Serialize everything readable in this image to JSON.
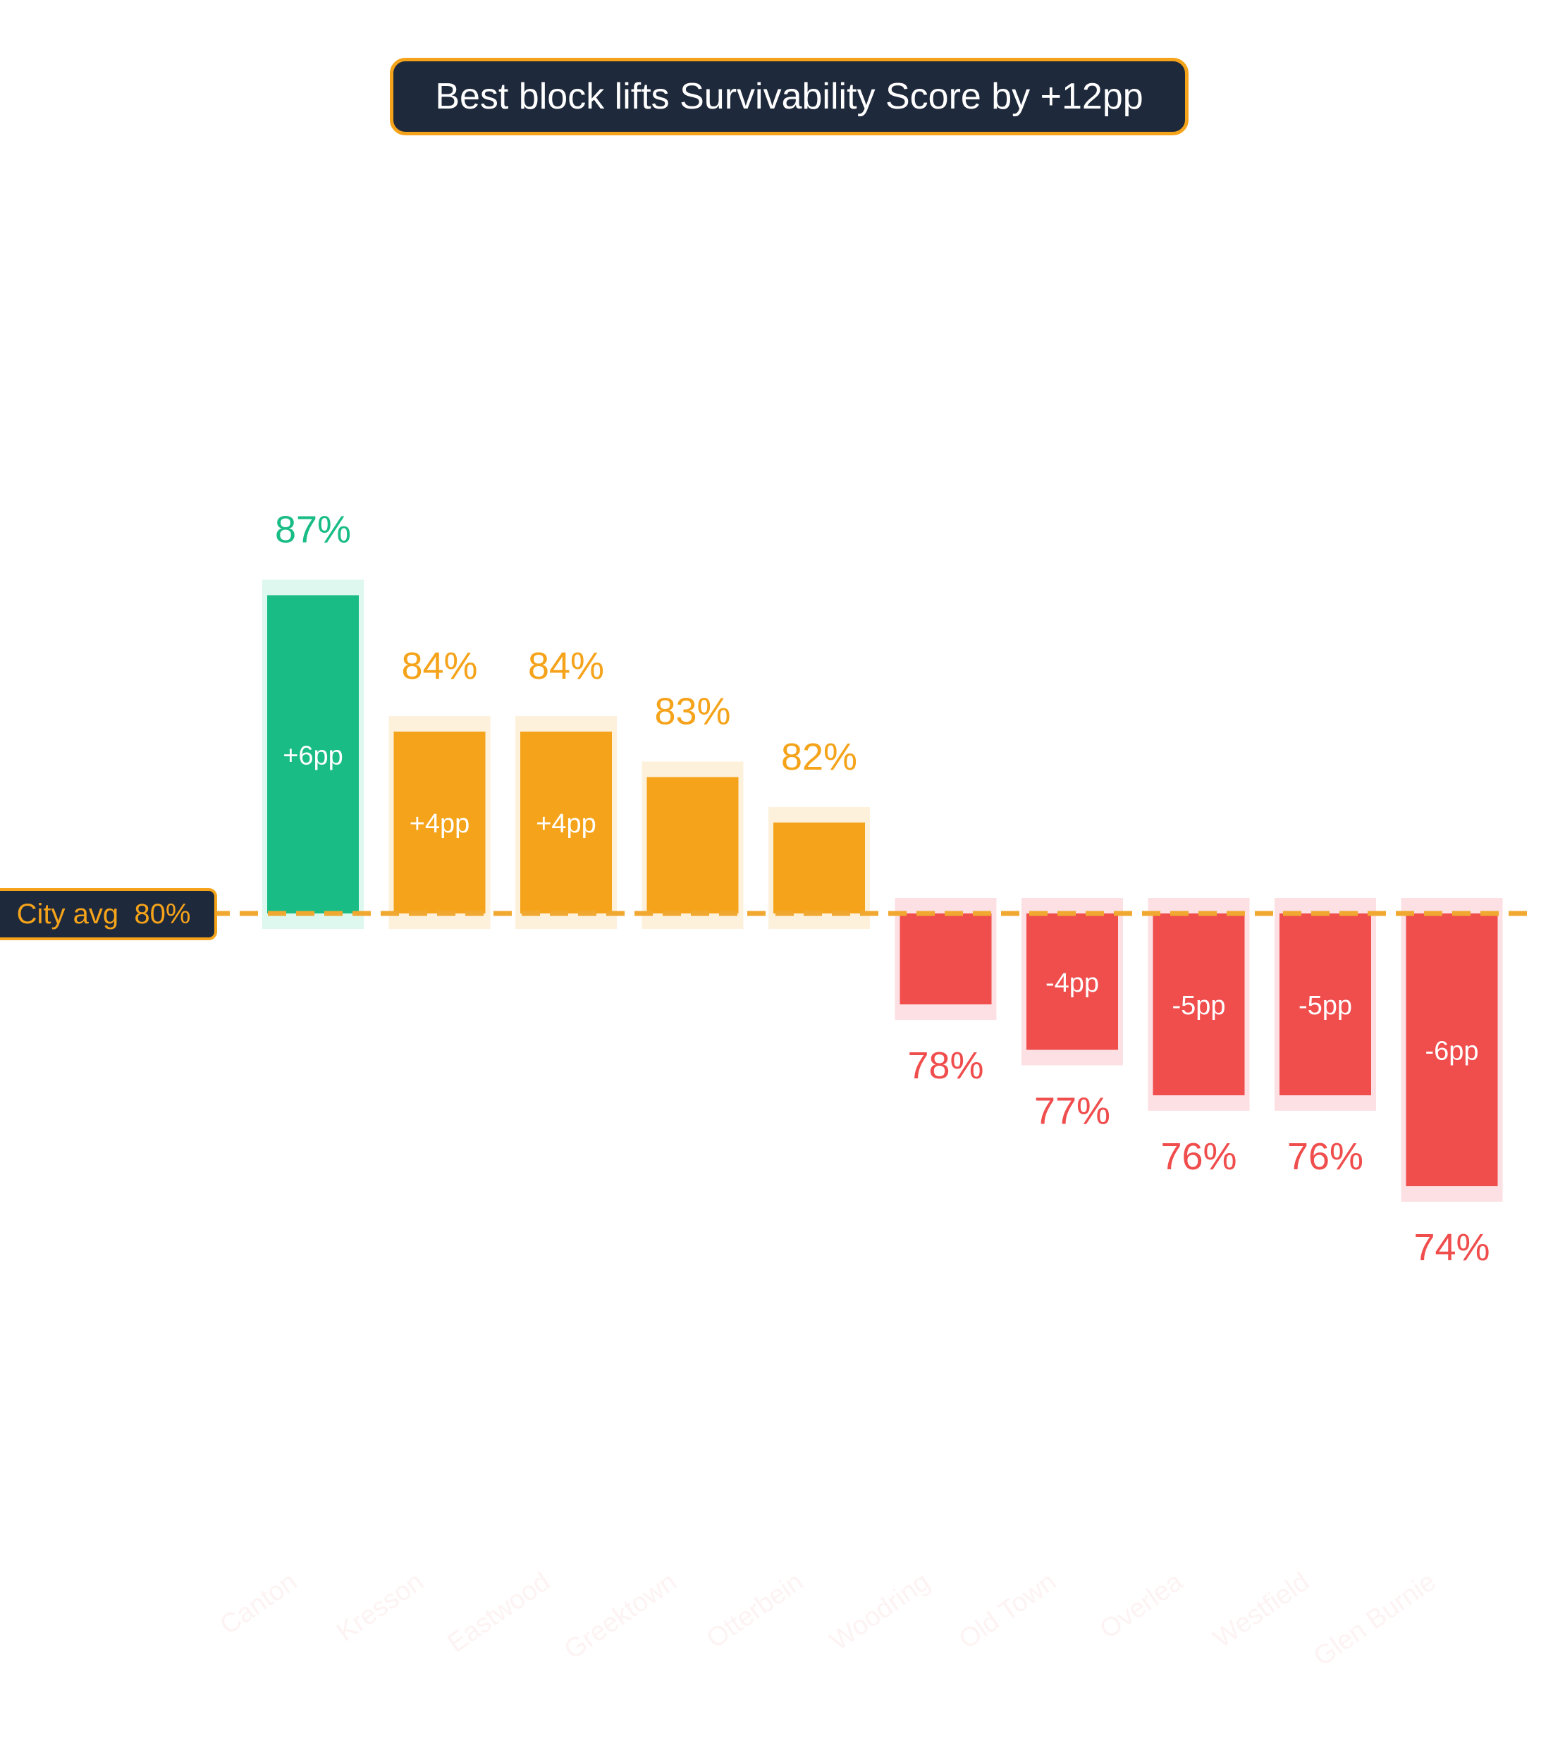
{
  "title": "Best block lifts Survivability Score by +12pp",
  "reference": {
    "label": "City avg",
    "value_label": "80%",
    "value": 80
  },
  "colors": {
    "top": "#1abc85",
    "top_bg": "#def8ef",
    "above": "#f5a31a",
    "above_bg": "#fdf1dc",
    "below": "#f04d4d",
    "below_bg": "#fde0e3",
    "avg_line": "#f0a830",
    "category_label": "#fdf3f3"
  },
  "chart_data": {
    "type": "bar",
    "title": "Best block lifts Survivability Score by +12pp",
    "xlabel": "",
    "ylabel": "",
    "baseline": 80,
    "categories": [
      "Canton",
      "Kresson",
      "Eastwood",
      "Greektown",
      "Otterbein",
      "Woodring",
      "Old Town",
      "Overlea",
      "Westfield",
      "Glen Burnie"
    ],
    "values": [
      87,
      84,
      84,
      83,
      82,
      78,
      77,
      76,
      76,
      74
    ],
    "value_labels": [
      "87%",
      "84%",
      "84%",
      "83%",
      "82%",
      "78%",
      "77%",
      "76%",
      "76%",
      "74%"
    ],
    "delta_labels": [
      "+6pp",
      "+4pp",
      "+4pp",
      "",
      "",
      "",
      "-4pp",
      "-5pp",
      "-5pp",
      "-6pp"
    ],
    "grid": false,
    "legend": "none"
  }
}
